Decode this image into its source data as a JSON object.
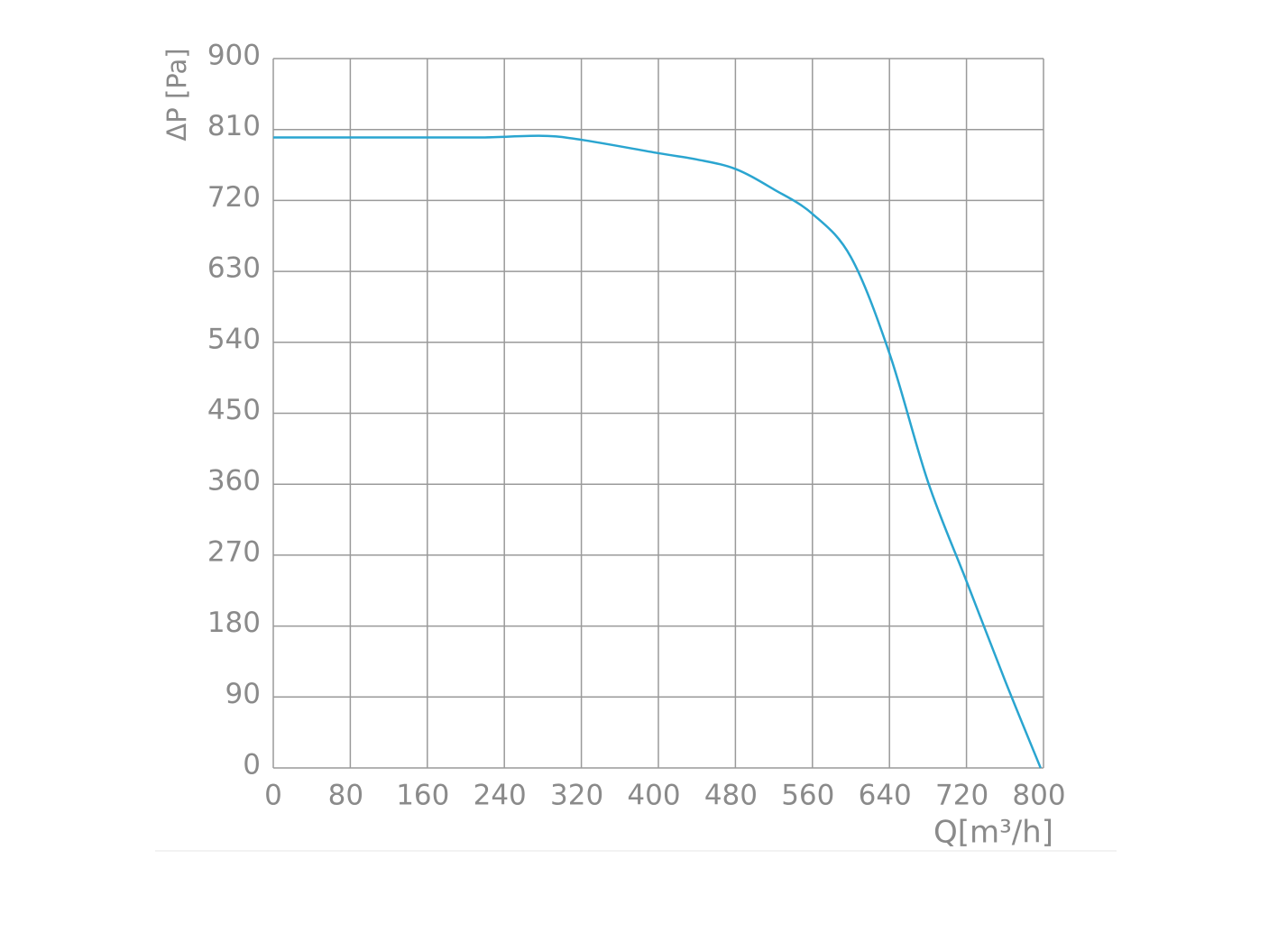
{
  "chart_data": {
    "type": "line",
    "x_label": "Q[m³/h]",
    "y_label": "ΔP [Pa]",
    "xlim": [
      0,
      800
    ],
    "xticks": [
      0,
      80,
      160,
      240,
      320,
      400,
      480,
      560,
      640,
      720,
      800
    ],
    "ylim": [
      0,
      900
    ],
    "yticks": [
      0,
      90,
      180,
      270,
      360,
      450,
      540,
      630,
      720,
      810,
      900
    ],
    "grid": true,
    "series": [
      {
        "color": "#2aa5d0",
        "x": [
          0,
          80,
          160,
          220,
          280,
          320,
          400,
          440,
          480,
          520,
          560,
          600,
          640,
          680,
          720,
          760,
          797
        ],
        "values": [
          800,
          800,
          800,
          800,
          802,
          797,
          780,
          772,
          760,
          734,
          703,
          648,
          526,
          363,
          237,
          111,
          0
        ]
      }
    ]
  }
}
